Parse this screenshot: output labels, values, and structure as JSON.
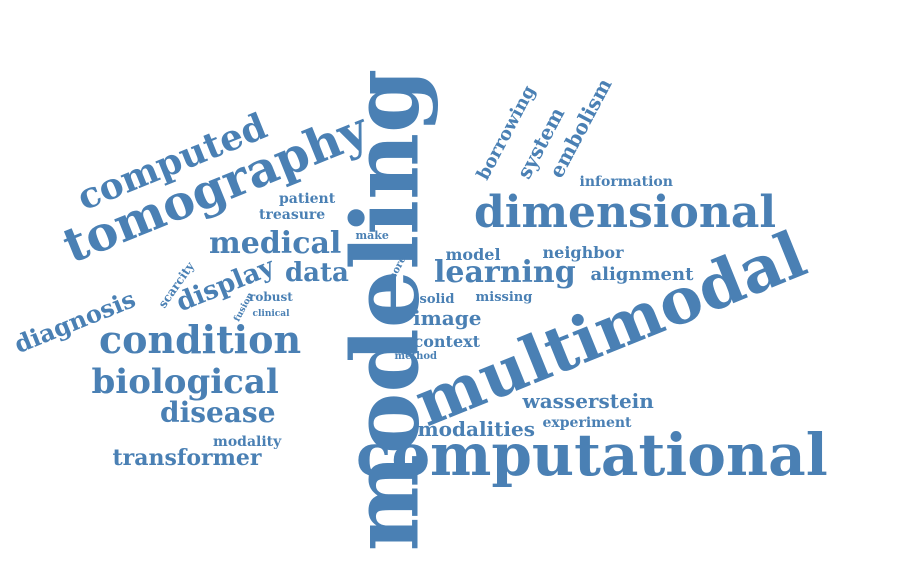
{
  "cloud": {
    "color": "#4a80b4",
    "words": [
      {
        "text": "modeling"
      },
      {
        "text": "multimodal"
      },
      {
        "text": "computational"
      },
      {
        "text": "dimensional"
      },
      {
        "text": "tomography"
      },
      {
        "text": "computed"
      },
      {
        "text": "condition"
      },
      {
        "text": "biological"
      },
      {
        "text": "medical"
      },
      {
        "text": "learning"
      },
      {
        "text": "diagnosis"
      },
      {
        "text": "disease"
      },
      {
        "text": "display"
      },
      {
        "text": "data"
      },
      {
        "text": "transformer"
      },
      {
        "text": "wasserstein"
      },
      {
        "text": "modalities"
      },
      {
        "text": "image"
      },
      {
        "text": "embolism"
      },
      {
        "text": "system"
      },
      {
        "text": "borrowing"
      },
      {
        "text": "alignment"
      },
      {
        "text": "neighbor"
      },
      {
        "text": "model"
      },
      {
        "text": "context"
      },
      {
        "text": "experiment"
      },
      {
        "text": "modality"
      },
      {
        "text": "information"
      },
      {
        "text": "treasure"
      },
      {
        "text": "patient"
      },
      {
        "text": "missing"
      },
      {
        "text": "solid"
      },
      {
        "text": "scarcity"
      },
      {
        "text": "robust"
      },
      {
        "text": "make"
      },
      {
        "text": "more"
      },
      {
        "text": "method"
      },
      {
        "text": "clinical"
      },
      {
        "text": "fusion"
      }
    ]
  }
}
